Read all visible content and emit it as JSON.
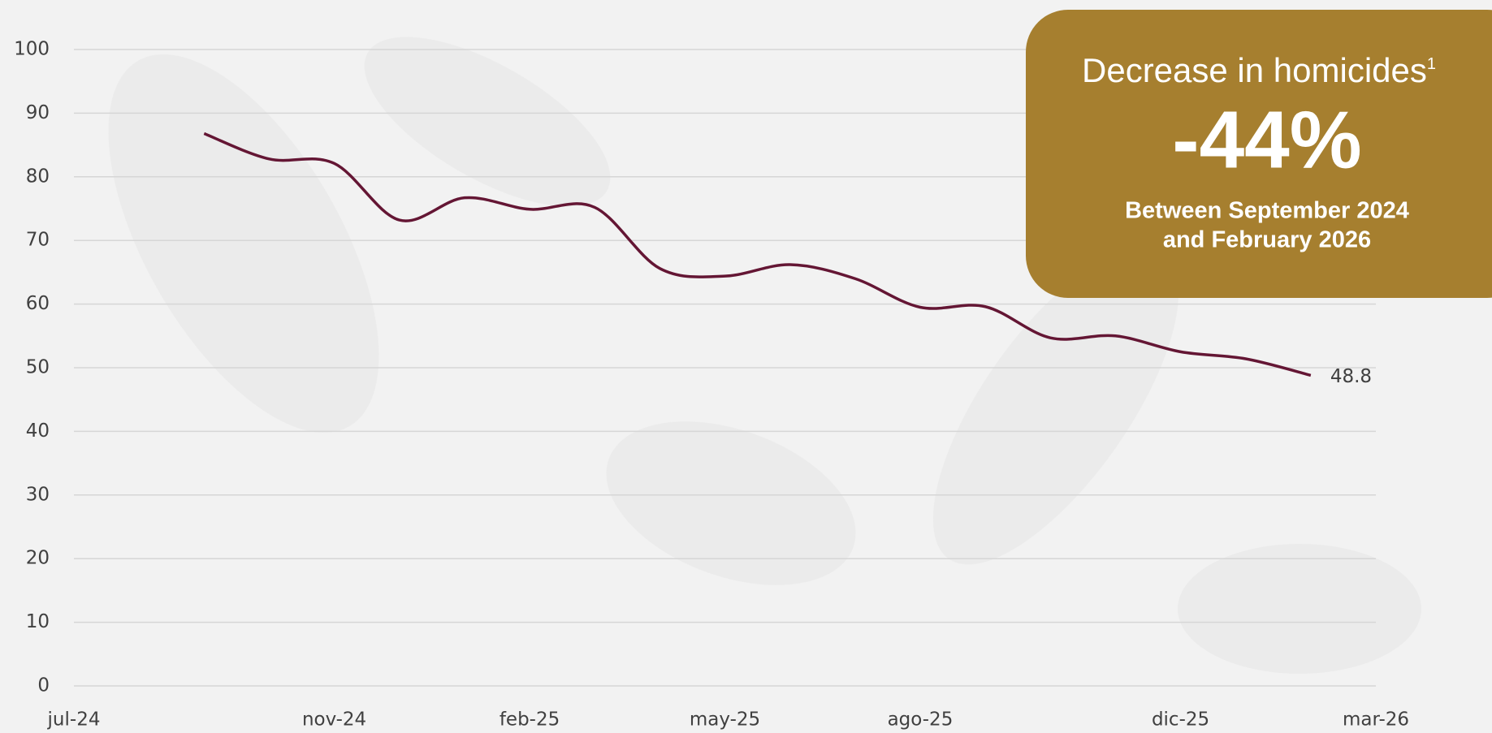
{
  "chart_data": {
    "type": "line",
    "x": [
      "2024-09",
      "2024-10",
      "2024-11",
      "2024-12",
      "2025-01",
      "2025-02",
      "2025-03",
      "2025-04",
      "2025-05",
      "2025-06",
      "2025-07",
      "2025-08",
      "2025-09",
      "2025-10",
      "2025-11",
      "2025-12",
      "2026-01",
      "2026-02"
    ],
    "series": [
      {
        "color": "#641634",
        "values": [
          86.8,
          82.8,
          82.1,
          73.2,
          76.7,
          74.9,
          75.2,
          65.6,
          64.4,
          66.2,
          64.0,
          59.5,
          59.6,
          54.7,
          55.0,
          52.5,
          51.4,
          48.8
        ]
      }
    ],
    "xlim": [
      "2024-07",
      "2026-03"
    ],
    "xticks": [
      {
        "value": "2024-07",
        "label": "jul-24"
      },
      {
        "value": "2024-11",
        "label": "nov-24"
      },
      {
        "value": "2025-02",
        "label": "feb-25"
      },
      {
        "value": "2025-05",
        "label": "may-25"
      },
      {
        "value": "2025-08",
        "label": "ago-25"
      },
      {
        "value": "2025-12",
        "label": "dic-25"
      },
      {
        "value": "2026-03",
        "label": "mar-26"
      }
    ],
    "ylim": [
      0,
      100
    ],
    "yticks": [
      0,
      10,
      20,
      30,
      40,
      50,
      60,
      70,
      80,
      90,
      100
    ],
    "grid": true,
    "annotation": {
      "title": "Decrease in homicides",
      "footnote": "1",
      "value": "-44%",
      "lines": [
        "Between September 2024",
        "and February 2026"
      ],
      "color": "#a67f2f"
    }
  }
}
